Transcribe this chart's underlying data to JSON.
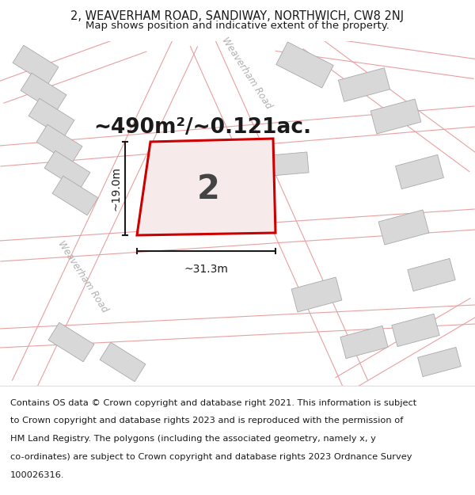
{
  "title_line1": "2, WEAVERHAM ROAD, SANDIWAY, NORTHWICH, CW8 2NJ",
  "title_line2": "Map shows position and indicative extent of the property.",
  "area_label": "~490m²/~0.121ac.",
  "property_number": "2",
  "dim_horizontal": "~31.3m",
  "dim_vertical": "~19.0m",
  "footer_lines": [
    "Contains OS data © Crown copyright and database right 2021. This information is subject",
    "to Crown copyright and database rights 2023 and is reproduced with the permission of",
    "HM Land Registry. The polygons (including the associated geometry, namely x, y",
    "co-ordinates) are subject to Crown copyright and database rights 2023 Ordnance Survey",
    "100026316."
  ],
  "map_bg": "#f2efef",
  "road_fill": "#ffffff",
  "road_edge": "#e8a0a0",
  "building_fill": "#d8d8d8",
  "building_edge": "#aaaaaa",
  "property_fill": "#f7eaea",
  "property_edge": "#cc0000",
  "dim_color": "#1a1a1a",
  "road_label_color": "#b0b0b0",
  "title_bg": "#ffffff",
  "footer_bg": "#ffffff",
  "text_color": "#1a1a1a"
}
